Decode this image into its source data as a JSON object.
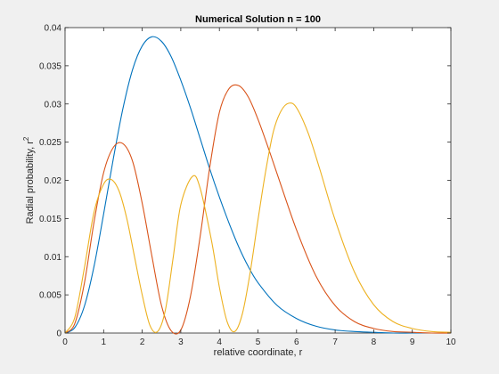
{
  "chart_data": {
    "type": "line",
    "title": "Numerical Solution n = 100",
    "xlabel": "relative coordinate, r",
    "ylabel": "Radial probability, r",
    "ylabel_superscript": "2",
    "xlim": [
      0,
      10
    ],
    "ylim": [
      0,
      0.04
    ],
    "xticks": [
      "0",
      "1",
      "2",
      "3",
      "4",
      "5",
      "6",
      "7",
      "8",
      "9",
      "10"
    ],
    "yticks": [
      "0",
      "0.005",
      "0.01",
      "0.015",
      "0.02",
      "0.025",
      "0.03",
      "0.035",
      "0.04"
    ],
    "grid": false,
    "series": [
      {
        "color": "#0072bd",
        "x": [
          0,
          0.25,
          0.5,
          0.75,
          1.0,
          1.25,
          1.5,
          1.75,
          2.0,
          2.25,
          2.5,
          2.75,
          3.0,
          3.25,
          3.5,
          3.75,
          4.0,
          4.25,
          4.5,
          4.75,
          5.0,
          5.5,
          6.0,
          6.5,
          7.0,
          7.5,
          8.0,
          8.5,
          9.0,
          9.5,
          10.0
        ],
        "y": [
          0,
          0.0007,
          0.0035,
          0.0087,
          0.0156,
          0.0228,
          0.0294,
          0.0345,
          0.0376,
          0.0388,
          0.0382,
          0.0362,
          0.0331,
          0.0295,
          0.0255,
          0.0215,
          0.0178,
          0.0144,
          0.0113,
          0.0087,
          0.0066,
          0.0036,
          0.0019,
          0.0009,
          0.0004,
          0.0002,
          0.0001,
          0,
          0,
          0,
          0
        ]
      },
      {
        "color": "#d95319",
        "x": [
          0,
          0.25,
          0.5,
          0.75,
          1.0,
          1.25,
          1.5,
          1.75,
          2.0,
          2.25,
          2.5,
          2.75,
          3.0,
          3.25,
          3.5,
          3.75,
          4.0,
          4.25,
          4.5,
          4.75,
          5.0,
          5.25,
          5.5,
          6.0,
          6.5,
          7.0,
          7.5,
          8.0,
          8.5,
          9.0,
          9.5,
          10.0
        ],
        "y": [
          0,
          0.0012,
          0.0065,
          0.0145,
          0.021,
          0.0243,
          0.0248,
          0.0225,
          0.017,
          0.0101,
          0.0036,
          0.0003,
          0.0004,
          0.0048,
          0.0126,
          0.0217,
          0.0289,
          0.032,
          0.0324,
          0.0309,
          0.028,
          0.0245,
          0.0208,
          0.0135,
          0.0075,
          0.0036,
          0.0015,
          0.0006,
          0.0002,
          0.0001,
          0,
          0
        ]
      },
      {
        "color": "#edb120",
        "x": [
          0,
          0.25,
          0.5,
          0.75,
          1.0,
          1.2,
          1.4,
          1.6,
          1.8,
          2.0,
          2.2,
          2.4,
          2.6,
          2.8,
          3.0,
          3.3,
          3.5,
          3.8,
          4.0,
          4.2,
          4.4,
          4.6,
          4.8,
          5.0,
          5.2,
          5.4,
          5.6,
          5.8,
          6.0,
          6.3,
          6.6,
          7.0,
          7.5,
          8.0,
          8.5,
          9.0,
          9.5,
          10.0
        ],
        "y": [
          0,
          0.002,
          0.0085,
          0.0158,
          0.0195,
          0.0201,
          0.0186,
          0.015,
          0.01,
          0.005,
          0.001,
          0.0002,
          0.003,
          0.0098,
          0.0168,
          0.0205,
          0.019,
          0.012,
          0.006,
          0.0015,
          0.0002,
          0.0026,
          0.008,
          0.0148,
          0.0212,
          0.0264,
          0.0291,
          0.0301,
          0.0295,
          0.0262,
          0.0215,
          0.0148,
          0.008,
          0.0037,
          0.0015,
          0.0006,
          0.0002,
          0.0001
        ]
      }
    ]
  }
}
